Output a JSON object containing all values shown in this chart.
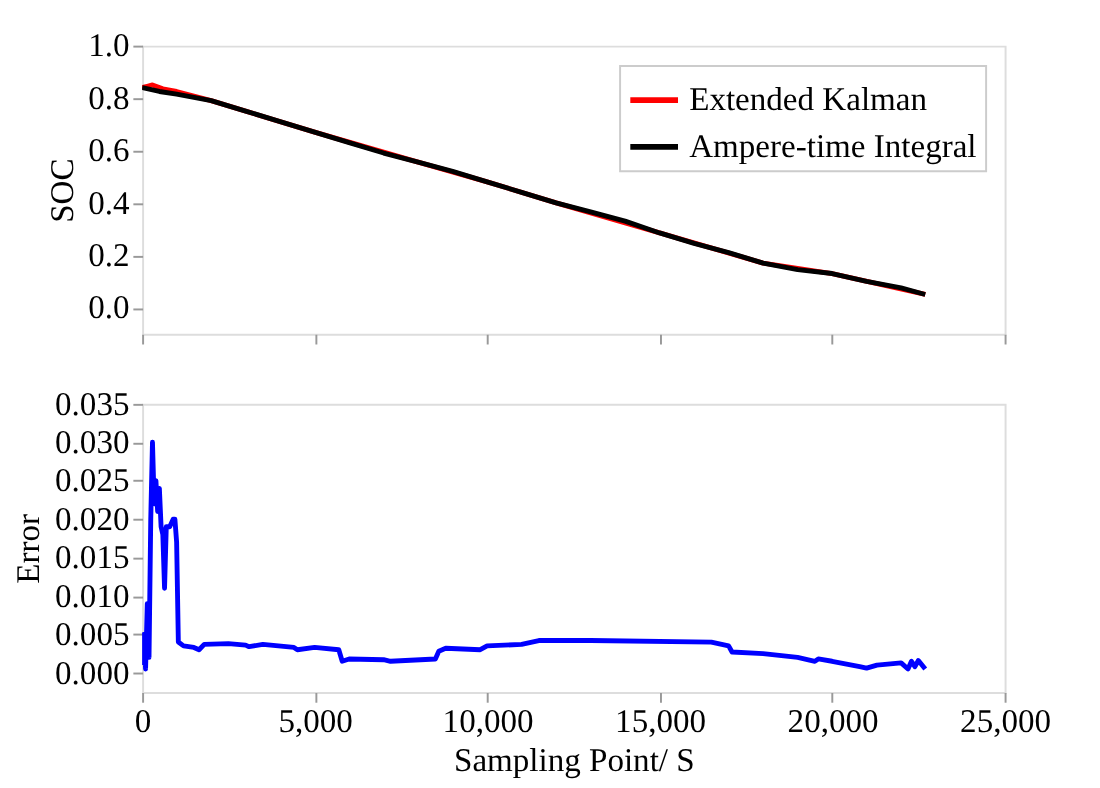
{
  "chart_data": [
    {
      "type": "line",
      "ylabel": "SOC",
      "legend": "top right",
      "grid": false,
      "tick_labels": "y",
      "xlim": [
        0,
        25000
      ],
      "xticks": [
        0,
        5000,
        10000,
        15000,
        20000,
        25000
      ],
      "ylim": [
        -0.1,
        1.0
      ],
      "yticks": [
        {
          "value": 0,
          "label": "0.0"
        },
        0.2,
        0.4,
        0.6,
        0.8,
        {
          "value": 1,
          "label": "1.0"
        }
      ],
      "series": [
        {
          "name": "Extended Kalman",
          "color": "#ff0000",
          "x": [
            0,
            150,
            300,
            600,
            1000,
            2000,
            5000,
            8000,
            10000,
            12000,
            15000,
            18000,
            20000,
            22700
          ],
          "values": [
            0.84,
            0.845,
            0.85,
            0.835,
            0.825,
            0.79,
            0.67,
            0.555,
            0.48,
            0.4,
            0.285,
            0.17,
            0.13,
            0.05
          ]
        },
        {
          "name": "Ampere-time Integral",
          "color": "#000000",
          "x": [
            0,
            500,
            1000,
            2000,
            3000,
            4000,
            5000,
            6000,
            7000,
            8000,
            9000,
            10000,
            11000,
            12000,
            13000,
            14000,
            15000,
            16000,
            17000,
            18000,
            19000,
            20000,
            21000,
            22000,
            22700
          ],
          "values": [
            0.84,
            0.825,
            0.815,
            0.79,
            0.75,
            0.71,
            0.67,
            0.63,
            0.59,
            0.555,
            0.52,
            0.48,
            0.44,
            0.4,
            0.365,
            0.33,
            0.285,
            0.245,
            0.21,
            0.17,
            0.145,
            0.13,
            0.1,
            0.075,
            0.05
          ]
        }
      ]
    },
    {
      "type": "line",
      "xlabel": "Sampling Point/ S",
      "ylabel": "Error",
      "legend": false,
      "grid": false,
      "xlim": [
        0,
        25000
      ],
      "xticks": [
        0,
        {
          "value": 5000,
          "label": "5,000"
        },
        {
          "value": 10000,
          "label": "10,000"
        },
        {
          "value": 15000,
          "label": "15,000"
        },
        {
          "value": 20000,
          "label": "20,000"
        },
        {
          "value": 25000,
          "label": "25,000"
        }
      ],
      "ylim": [
        -0.0025,
        0.035
      ],
      "yticks": [
        {
          "value": 0,
          "label": "0.000"
        },
        {
          "value": 0.005,
          "label": "0.005"
        },
        {
          "value": 0.01,
          "label": "0.010"
        },
        {
          "value": 0.015,
          "label": "0.015"
        },
        {
          "value": 0.02,
          "label": "0.020"
        },
        {
          "value": 0.025,
          "label": "0.025"
        },
        {
          "value": 0.03,
          "label": "0.030"
        },
        {
          "value": 0.035,
          "label": "0.035"
        }
      ],
      "series": [
        {
          "color": "#0000ff",
          "x": [
            0,
            50,
            100,
            150,
            200,
            250,
            300,
            350,
            400,
            450,
            500,
            550,
            600,
            650,
            700,
            800,
            900,
            950,
            1000,
            1050,
            1200,
            1500,
            1650,
            1800,
            2500,
            3000,
            3100,
            3500,
            4400,
            4500,
            5000,
            5700,
            5800,
            6000,
            7000,
            7200,
            8500,
            8600,
            8800,
            9800,
            10000,
            11000,
            11500,
            13000,
            16500,
            17000,
            17100,
            18000,
            19000,
            19500,
            19600,
            20000,
            20800,
            21000,
            21300,
            22000,
            22200,
            22300,
            22400,
            22500,
            22700
          ],
          "values": [
            0.001,
            0.005,
            0.0005,
            0.009,
            0.002,
            0.02,
            0.03,
            0.022,
            0.025,
            0.021,
            0.024,
            0.019,
            0.018,
            0.011,
            0.019,
            0.019,
            0.02,
            0.02,
            0.017,
            0.004,
            0.0035,
            0.0033,
            0.003,
            0.0037,
            0.0038,
            0.0036,
            0.0034,
            0.0037,
            0.0033,
            0.003,
            0.0033,
            0.003,
            0.0015,
            0.0018,
            0.0017,
            0.0015,
            0.0018,
            0.0028,
            0.0032,
            0.003,
            0.0035,
            0.0037,
            0.0042,
            0.0042,
            0.004,
            0.0035,
            0.0027,
            0.0025,
            0.002,
            0.0015,
            0.0018,
            0.0015,
            0.0008,
            0.0006,
            0.001,
            0.0013,
            0.0005,
            0.0015,
            0.0008,
            0.0016,
            0.0005
          ]
        }
      ]
    }
  ]
}
